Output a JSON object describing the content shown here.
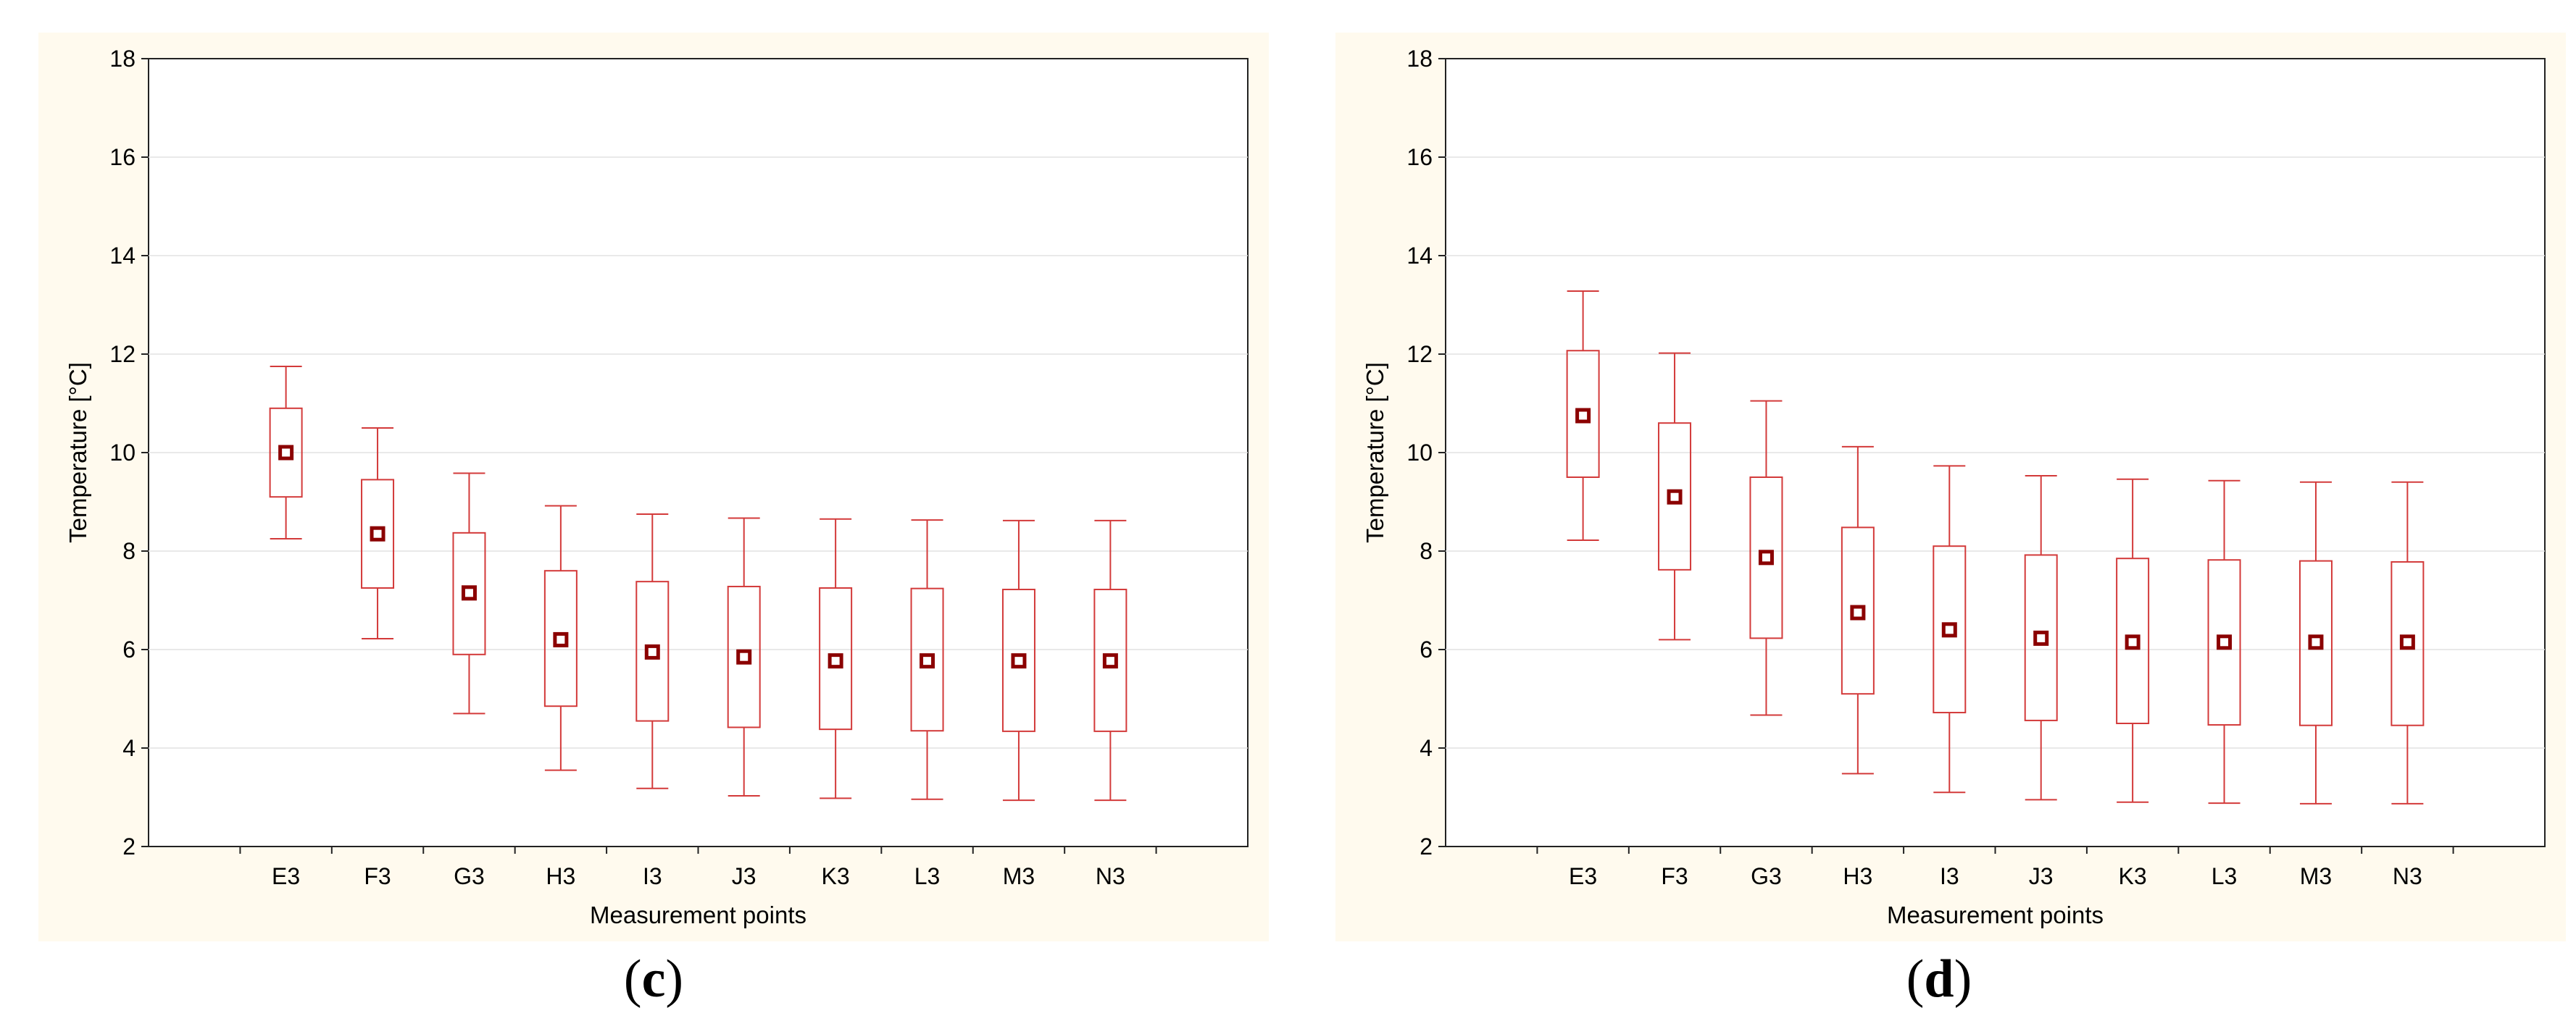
{
  "colors": {
    "panel_bg": "#fffaee",
    "plot_bg": "#ffffff",
    "box": "#d33a3a",
    "marker": "#8b0000",
    "grid": "#e2e2e2",
    "axis": "#222222"
  },
  "chart_data": [
    {
      "type": "box",
      "panel_label": "c",
      "caption": {
        "open": "(",
        "letter": "c",
        "close": ")"
      },
      "xlabel": "Measurement points",
      "ylabel": "Temperature [°C]",
      "ylim": [
        2,
        18
      ],
      "yticks": [
        2,
        4,
        6,
        8,
        10,
        12,
        14,
        16,
        18
      ],
      "categories": [
        "E3",
        "F3",
        "G3",
        "H3",
        "I3",
        "J3",
        "K3",
        "L3",
        "M3",
        "N3"
      ],
      "series": [
        {
          "name": "Temperature",
          "mean": [
            10.0,
            8.35,
            7.15,
            6.2,
            5.95,
            5.85,
            5.77,
            5.77,
            5.77,
            5.77
          ],
          "q1": [
            9.1,
            7.25,
            5.9,
            4.85,
            4.55,
            4.42,
            4.38,
            4.35,
            4.34,
            4.34
          ],
          "q3": [
            10.9,
            9.45,
            8.37,
            7.6,
            7.38,
            7.28,
            7.25,
            7.24,
            7.22,
            7.22
          ],
          "min": [
            8.25,
            6.22,
            4.7,
            3.55,
            3.18,
            3.03,
            2.98,
            2.96,
            2.94,
            2.94
          ],
          "max": [
            11.75,
            10.5,
            9.58,
            8.92,
            8.75,
            8.67,
            8.65,
            8.63,
            8.62,
            8.62
          ]
        }
      ]
    },
    {
      "type": "box",
      "panel_label": "d",
      "caption": {
        "open": "(",
        "letter": "d",
        "close": ")"
      },
      "xlabel": "Measurement points",
      "ylabel": "Temperature [°C]",
      "ylim": [
        2,
        18
      ],
      "yticks": [
        2,
        4,
        6,
        8,
        10,
        12,
        14,
        16,
        18
      ],
      "categories": [
        "E3",
        "F3",
        "G3",
        "H3",
        "I3",
        "J3",
        "K3",
        "L3",
        "M3",
        "N3"
      ],
      "series": [
        {
          "name": "Temperature",
          "mean": [
            10.75,
            9.1,
            7.87,
            6.75,
            6.4,
            6.23,
            6.15,
            6.15,
            6.15,
            6.15
          ],
          "q1": [
            9.5,
            7.62,
            6.23,
            5.1,
            4.72,
            4.56,
            4.5,
            4.47,
            4.46,
            4.46
          ],
          "q3": [
            12.07,
            10.6,
            9.5,
            8.48,
            8.1,
            7.92,
            7.85,
            7.82,
            7.8,
            7.78
          ],
          "min": [
            8.22,
            6.2,
            4.67,
            3.48,
            3.1,
            2.95,
            2.9,
            2.88,
            2.87,
            2.87
          ],
          "max": [
            13.28,
            12.02,
            11.05,
            10.12,
            9.73,
            9.53,
            9.46,
            9.43,
            9.4,
            9.4
          ]
        }
      ]
    }
  ]
}
